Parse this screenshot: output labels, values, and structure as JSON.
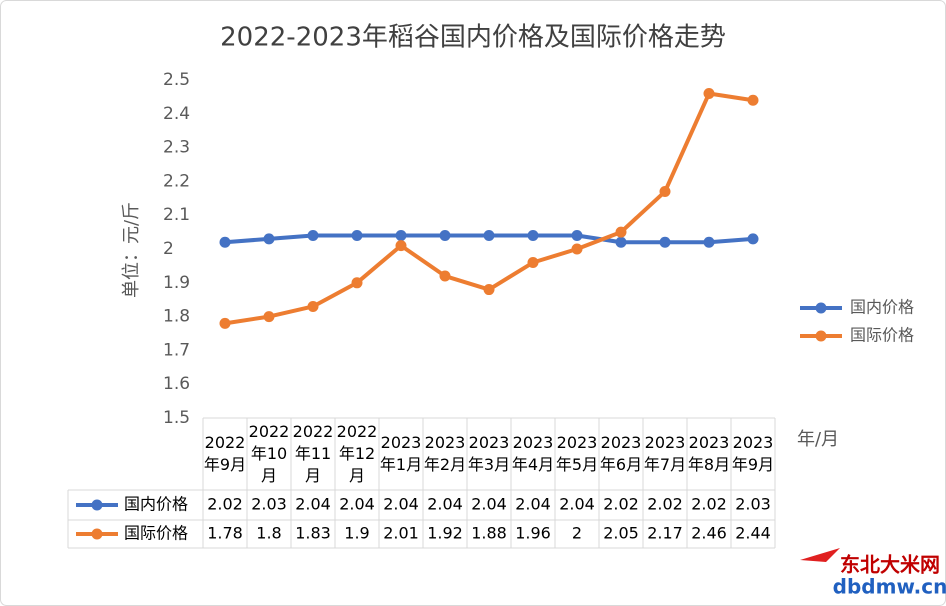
{
  "chart_data": {
    "type": "line",
    "title": "2022-2023年稻谷国内价格及国际价格走势",
    "ylabel": "单位：元/斤",
    "xlabel": "年/月",
    "categories": [
      "2022年9月",
      "2022年10月",
      "2022年11月",
      "2022年12月",
      "2023年1月",
      "2023年2月",
      "2023年3月",
      "2023年4月",
      "2023年5月",
      "2023年6月",
      "2023年7月",
      "2023年8月",
      "2023年9月"
    ],
    "series": [
      {
        "name": "国内价格",
        "color": "#4472c4",
        "values": [
          2.02,
          2.03,
          2.04,
          2.04,
          2.04,
          2.04,
          2.04,
          2.04,
          2.04,
          2.02,
          2.02,
          2.02,
          2.03
        ]
      },
      {
        "name": "国际价格",
        "color": "#ed7d31",
        "values": [
          1.78,
          1.8,
          1.83,
          1.9,
          2.01,
          1.92,
          1.88,
          1.96,
          2,
          2.05,
          2.17,
          2.46,
          2.44
        ]
      }
    ],
    "ylim": [
      1.5,
      2.5
    ],
    "yticks": [
      1.5,
      1.6,
      1.7,
      1.8,
      1.9,
      2,
      2.1,
      2.2,
      2.3,
      2.4,
      2.5
    ],
    "grid": false,
    "legend_position": "right",
    "data_table": true,
    "watermark": [
      "东北大米网",
      "dbdmw.cn"
    ]
  }
}
